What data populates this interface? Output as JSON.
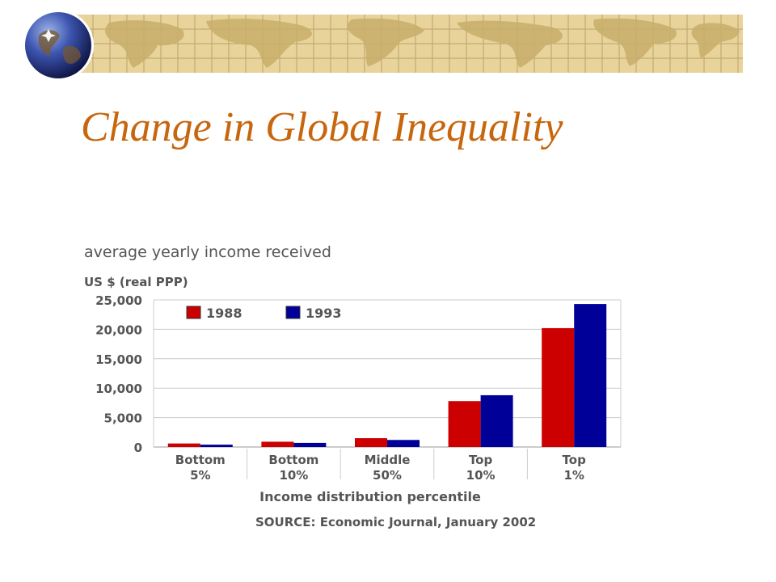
{
  "slide": {
    "title": "Change in Global Inequality"
  },
  "icons": {
    "globe": "globe-icon",
    "banner": "world-map-banner"
  },
  "colors": {
    "title": "#c8660e",
    "banner": "#e8d49a",
    "series_1988": "#cc0000",
    "series_1993": "#000099"
  },
  "chart_data": {
    "type": "bar",
    "title": "average yearly income received",
    "ylabel": "US $ (real PPP)",
    "xlabel": "Income distribution percentile",
    "source": "SOURCE: Economic Journal, January 2002",
    "categories": [
      [
        "Bottom",
        "5%"
      ],
      [
        "Bottom",
        "10%"
      ],
      [
        "Middle",
        "50%"
      ],
      [
        "Top",
        "10%"
      ],
      [
        "Top",
        "1%"
      ]
    ],
    "series": [
      {
        "name": "1988",
        "color": "#cc0000",
        "values": [
          600,
          900,
          1500,
          7800,
          20200
        ]
      },
      {
        "name": "1993",
        "color": "#000099",
        "values": [
          400,
          700,
          1200,
          8800,
          24300
        ]
      }
    ],
    "ylim": [
      0,
      25000
    ],
    "yticks": [
      0,
      5000,
      10000,
      15000,
      20000,
      25000
    ],
    "ytick_labels": [
      "0",
      "5,000",
      "10,000",
      "15,000",
      "20,000",
      "25,000"
    ],
    "grid": true,
    "legend_position": "top-left"
  }
}
